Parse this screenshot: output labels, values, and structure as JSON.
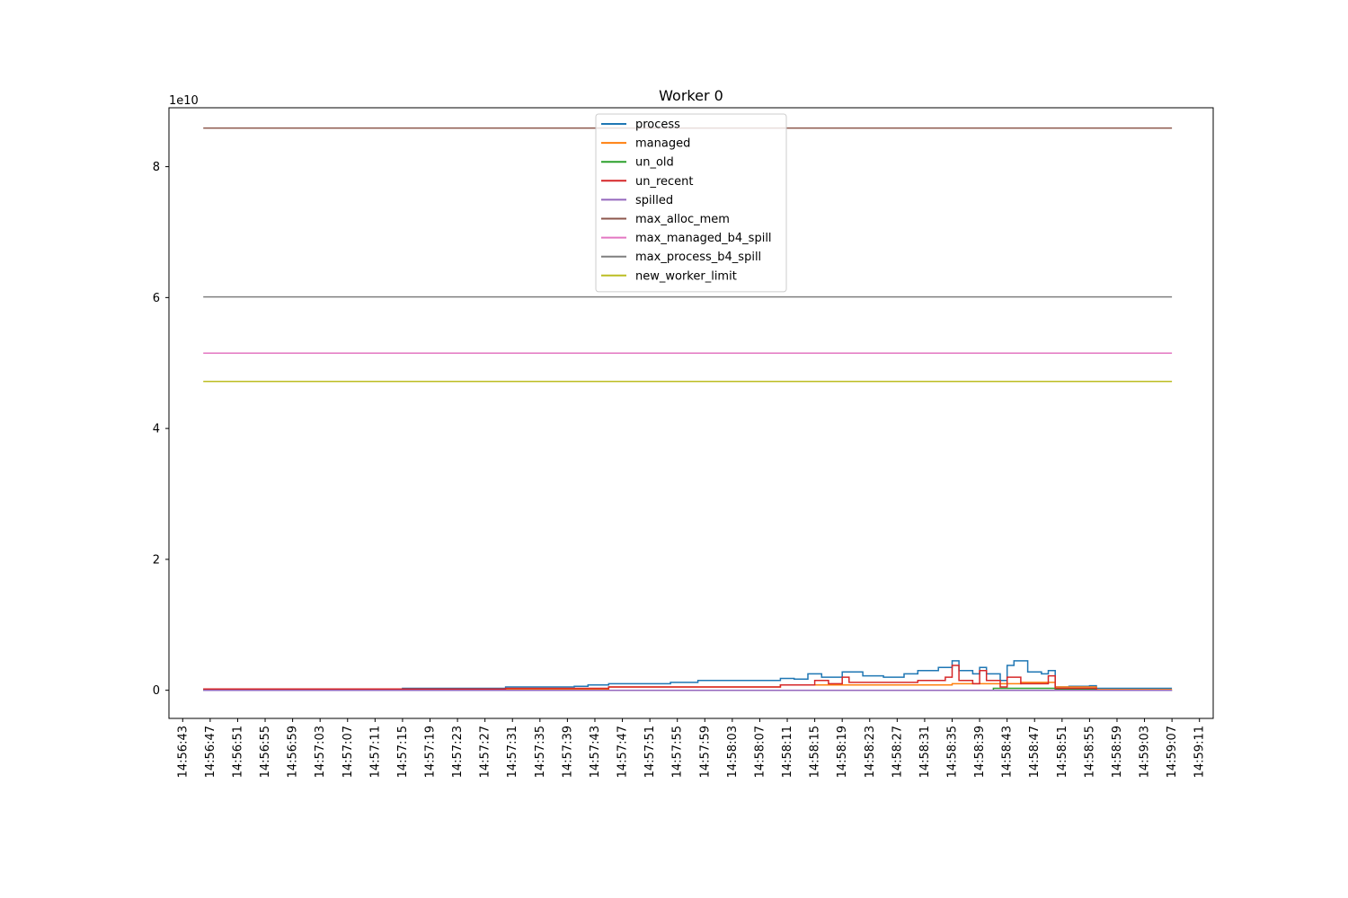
{
  "chart_data": {
    "type": "line",
    "title": "Worker 0",
    "xlabel": "",
    "ylabel": "",
    "y_offset_label": "1e10",
    "y_scale": 10000000000,
    "ylim": [
      -0.43,
      8.9
    ],
    "xlim": [
      "14:56:41",
      "14:59:13"
    ],
    "x_ticks": [
      "14:56:43",
      "14:56:47",
      "14:56:51",
      "14:56:55",
      "14:56:59",
      "14:57:03",
      "14:57:07",
      "14:57:11",
      "14:57:15",
      "14:57:19",
      "14:57:23",
      "14:57:27",
      "14:57:31",
      "14:57:35",
      "14:57:39",
      "14:57:43",
      "14:57:47",
      "14:57:51",
      "14:57:55",
      "14:57:59",
      "14:58:03",
      "14:58:07",
      "14:58:11",
      "14:58:15",
      "14:58:19",
      "14:58:23",
      "14:58:27",
      "14:58:31",
      "14:58:35",
      "14:58:39",
      "14:58:43",
      "14:58:47",
      "14:58:51",
      "14:58:55",
      "14:58:59",
      "14:59:03",
      "14:59:07",
      "14:59:11"
    ],
    "y_ticks": [
      0,
      2,
      4,
      6,
      8
    ],
    "grid": false,
    "legend_position": "upper center",
    "series": [
      {
        "name": "process",
        "color": "#1f77b4",
        "step": true,
        "x": [
          "14:56:46",
          "14:57:15",
          "14:57:30",
          "14:57:40",
          "14:57:42",
          "14:57:45",
          "14:57:50",
          "14:57:54",
          "14:57:58",
          "14:58:05",
          "14:58:10",
          "14:58:12",
          "14:58:14",
          "14:58:16",
          "14:58:18",
          "14:58:19",
          "14:58:22",
          "14:58:25",
          "14:58:28",
          "14:58:30",
          "14:58:33",
          "14:58:35",
          "14:58:36",
          "14:58:38",
          "14:58:39",
          "14:58:40",
          "14:58:42",
          "14:58:43",
          "14:58:44",
          "14:58:46",
          "14:58:48",
          "14:58:49",
          "14:58:50",
          "14:58:52",
          "14:58:54",
          "14:58:55",
          "14:58:56",
          "14:59:07"
        ],
        "y": [
          0.02,
          0.03,
          0.05,
          0.06,
          0.08,
          0.1,
          0.1,
          0.12,
          0.15,
          0.15,
          0.18,
          0.17,
          0.25,
          0.2,
          0.2,
          0.28,
          0.22,
          0.2,
          0.25,
          0.3,
          0.35,
          0.45,
          0.3,
          0.25,
          0.35,
          0.25,
          0.15,
          0.38,
          0.45,
          0.28,
          0.25,
          0.3,
          0.05,
          0.06,
          0.06,
          0.07,
          0.03,
          0.03
        ]
      },
      {
        "name": "managed",
        "color": "#ff7f0e",
        "step": true,
        "x": [
          "14:56:46",
          "14:57:30",
          "14:57:45",
          "14:58:10",
          "14:58:35",
          "14:58:45",
          "14:58:50",
          "14:58:56",
          "14:59:07"
        ],
        "y": [
          0.01,
          0.02,
          0.05,
          0.08,
          0.1,
          0.12,
          0.05,
          0.01,
          0.01
        ]
      },
      {
        "name": "un_old",
        "color": "#2ca02c",
        "step": true,
        "x": [
          "14:56:46",
          "14:58:41",
          "14:58:50",
          "14:58:56",
          "14:59:07"
        ],
        "y": [
          0.0,
          0.03,
          0.02,
          0.0,
          0.0
        ]
      },
      {
        "name": "un_recent",
        "color": "#d62728",
        "step": true,
        "x": [
          "14:56:46",
          "14:57:30",
          "14:57:45",
          "14:58:10",
          "14:58:15",
          "14:58:17",
          "14:58:19",
          "14:58:20",
          "14:58:25",
          "14:58:30",
          "14:58:34",
          "14:58:35",
          "14:58:36",
          "14:58:38",
          "14:58:39",
          "14:58:40",
          "14:58:42",
          "14:58:43",
          "14:58:45",
          "14:58:49",
          "14:58:50",
          "14:58:56",
          "14:59:07"
        ],
        "y": [
          0.02,
          0.03,
          0.05,
          0.08,
          0.15,
          0.1,
          0.2,
          0.12,
          0.12,
          0.15,
          0.2,
          0.38,
          0.15,
          0.1,
          0.3,
          0.15,
          0.05,
          0.2,
          0.1,
          0.22,
          0.03,
          0.0,
          0.0
        ]
      },
      {
        "name": "spilled",
        "color": "#9467bd",
        "step": true,
        "x": [
          "14:56:46",
          "14:59:07"
        ],
        "y": [
          0.0,
          0.0
        ]
      },
      {
        "name": "max_alloc_mem",
        "color": "#8c564b",
        "step": false,
        "x": [
          "14:56:46",
          "14:59:07"
        ],
        "y": [
          8.59,
          8.59
        ]
      },
      {
        "name": "max_managed_b4_spill",
        "color": "#e377c2",
        "step": false,
        "x": [
          "14:56:46",
          "14:59:07"
        ],
        "y": [
          5.15,
          5.15
        ]
      },
      {
        "name": "max_process_b4_spill",
        "color": "#7f7f7f",
        "step": false,
        "x": [
          "14:56:46",
          "14:59:07"
        ],
        "y": [
          6.01,
          6.01
        ]
      },
      {
        "name": "new_worker_limit",
        "color": "#bcbd22",
        "step": false,
        "x": [
          "14:56:46",
          "14:59:07"
        ],
        "y": [
          4.72,
          4.72
        ]
      }
    ]
  }
}
